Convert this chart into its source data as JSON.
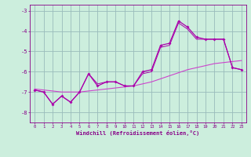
{
  "x": [
    0,
    1,
    2,
    3,
    4,
    5,
    6,
    7,
    8,
    9,
    10,
    11,
    12,
    13,
    14,
    15,
    16,
    17,
    18,
    19,
    20,
    21,
    22,
    23
  ],
  "line_jagged1": [
    -6.9,
    -7.0,
    -7.6,
    -7.2,
    -7.5,
    -7.0,
    -6.1,
    -6.7,
    -6.5,
    -6.5,
    -6.7,
    -6.7,
    -6.0,
    -5.9,
    -4.7,
    -4.6,
    -3.5,
    -3.8,
    -4.3,
    -4.4,
    -4.4,
    -4.4,
    -5.8,
    -5.9
  ],
  "line_jagged2": [
    -6.9,
    -7.0,
    -7.6,
    -7.2,
    -7.5,
    -7.0,
    -6.1,
    -6.6,
    -6.5,
    -6.5,
    -6.7,
    -6.7,
    -6.1,
    -6.0,
    -4.8,
    -4.7,
    -3.6,
    -3.9,
    -4.4,
    -4.4,
    -4.4,
    -4.4,
    -5.8,
    -5.9
  ],
  "line_smooth": [
    -6.85,
    -6.9,
    -6.95,
    -7.0,
    -7.0,
    -7.0,
    -6.95,
    -6.9,
    -6.85,
    -6.8,
    -6.75,
    -6.7,
    -6.6,
    -6.5,
    -6.35,
    -6.2,
    -6.05,
    -5.9,
    -5.8,
    -5.7,
    -5.6,
    -5.55,
    -5.5,
    -5.45
  ],
  "line_color": "#aa00aa",
  "smooth_color": "#cc44cc",
  "bg_color": "#cceedd",
  "grid_color": "#99bbbb",
  "tick_color": "#880088",
  "xlabel": "Windchill (Refroidissement éolien,°C)",
  "ylim": [
    -8.5,
    -2.7
  ],
  "xlim": [
    -0.5,
    23.5
  ],
  "yticks": [
    -8,
    -7,
    -6,
    -5,
    -4,
    -3
  ],
  "xticks": [
    0,
    1,
    2,
    3,
    4,
    5,
    6,
    7,
    8,
    9,
    10,
    11,
    12,
    13,
    14,
    15,
    16,
    17,
    18,
    19,
    20,
    21,
    22,
    23
  ],
  "fig_width": 3.2,
  "fig_height": 2.0,
  "dpi": 100
}
